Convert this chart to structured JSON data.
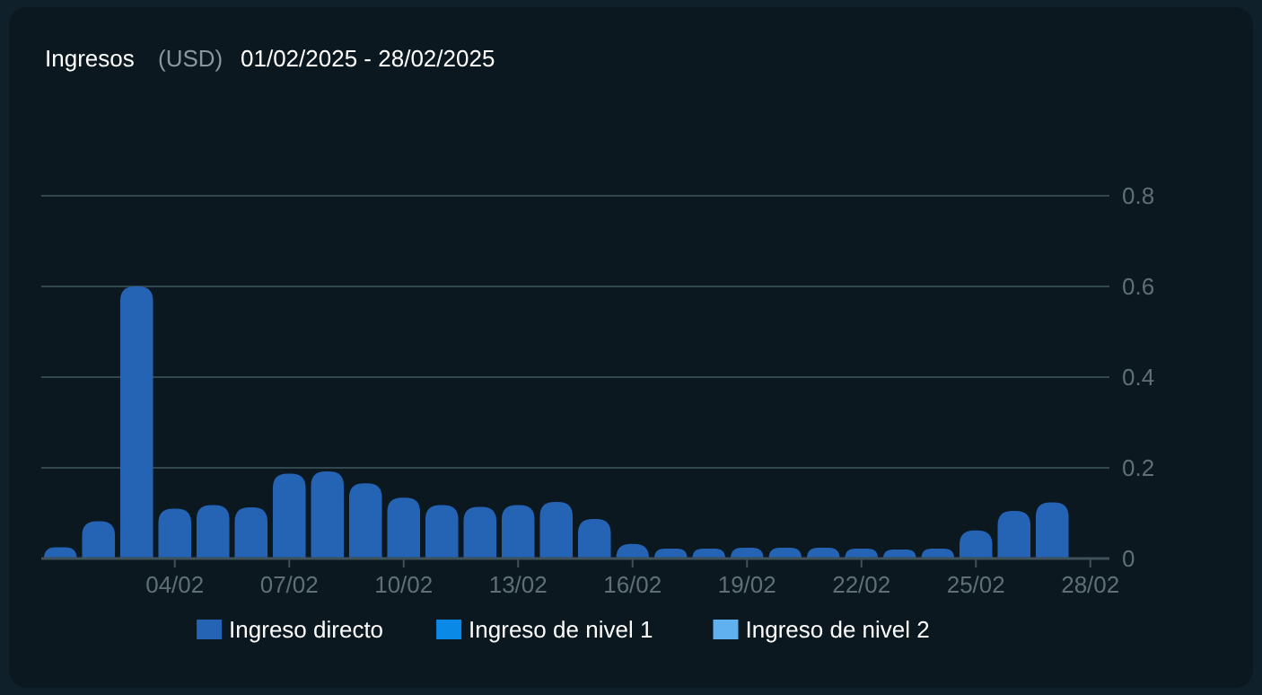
{
  "chart_data": {
    "type": "bar",
    "title": "Ingresos",
    "ylabel": "(USD)",
    "subtitle": "01/02/2025 - 28/02/2025",
    "categories": [
      null,
      null,
      null,
      "04/02",
      null,
      null,
      "07/02",
      null,
      null,
      "10/02",
      null,
      null,
      "13/02",
      null,
      null,
      "16/02",
      null,
      null,
      "19/02",
      null,
      null,
      "22/02",
      null,
      null,
      "25/02",
      null,
      null,
      "28/02"
    ],
    "stacked": true,
    "series": [
      {
        "name": "Ingreso directo",
        "color": "#2563b4",
        "values": [
          0.025,
          0.082,
          0.6,
          0.11,
          0.118,
          0.113,
          0.187,
          0.192,
          0.166,
          0.134,
          0.118,
          0.114,
          0.118,
          0.125,
          0.087,
          0.032,
          0.022,
          0.022,
          0.024,
          0.024,
          0.024,
          0.022,
          0.02,
          0.022,
          0.062,
          0.105,
          0.124,
          0
        ]
      },
      {
        "name": "Ingreso de nivel 1",
        "color": "#0a8ae6",
        "values": [
          0,
          0,
          0,
          0,
          0,
          0,
          0,
          0,
          0,
          0,
          0,
          0,
          0,
          0,
          0,
          0,
          0,
          0,
          0,
          0,
          0,
          0,
          0,
          0,
          0,
          0,
          0,
          0
        ]
      },
      {
        "name": "Ingreso de nivel 2",
        "color": "#5fb1f0",
        "values": [
          0,
          0,
          0,
          0,
          0,
          0,
          0,
          0,
          0,
          0,
          0,
          0,
          0,
          0,
          0,
          0,
          0,
          0,
          0,
          0,
          0,
          0,
          0,
          0,
          0,
          0,
          0,
          0
        ]
      }
    ],
    "ylim": [
      0,
      0.8
    ],
    "yticks": [
      0,
      0.2,
      0.4,
      0.6,
      0.8
    ],
    "grid": "y",
    "legend": "bottom"
  }
}
